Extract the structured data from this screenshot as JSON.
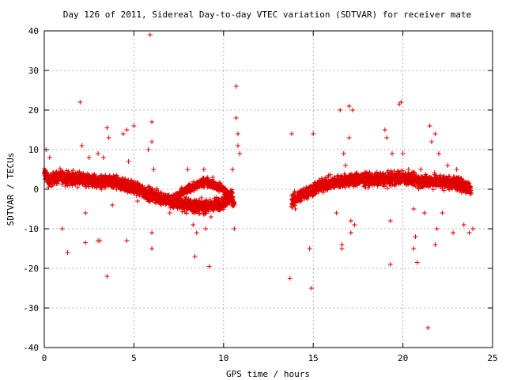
{
  "chart_data": {
    "type": "scatter",
    "title": "Day 126 of 2011, Sidereal Day-to-day VTEC variation (SDTVAR) for receiver mate",
    "xlabel": "GPS time / hours",
    "ylabel": "SDTVAR / TECUs",
    "xlim": [
      0,
      25
    ],
    "ylim": [
      -40,
      40
    ],
    "xticks": [
      0,
      5,
      10,
      15,
      20,
      25
    ],
    "yticks": [
      -40,
      -30,
      -20,
      -10,
      0,
      10,
      20,
      30,
      40
    ],
    "grid": true,
    "marker": "plus",
    "color": "#e00000",
    "dense_bands": [
      {
        "x": [
          0.0,
          0.3,
          0.6,
          1.0,
          2.0,
          3.0,
          4.0,
          5.0,
          6.0,
          7.0,
          8.0,
          9.0,
          10.0,
          10.5
        ],
        "y": [
          4.0,
          2.0,
          3.0,
          3.0,
          2.5,
          2.0,
          1.5,
          0.5,
          -1.5,
          -3.0,
          -4.0,
          -4.5,
          -3.5,
          -1.0
        ],
        "spread": 1.6
      },
      {
        "x": [
          7.0,
          8.0,
          9.0,
          10.0,
          10.6
        ],
        "y": [
          -3.0,
          0.0,
          2.0,
          0.0,
          -4.0
        ],
        "spread": 1.0
      },
      {
        "x": [
          13.8,
          14.5,
          15.5,
          16.5,
          17.5,
          19.0,
          20.0,
          21.0,
          22.0,
          23.0,
          23.8
        ],
        "y": [
          -3.0,
          -1.0,
          1.0,
          2.0,
          2.5,
          2.5,
          3.0,
          2.0,
          2.0,
          1.5,
          0.0
        ],
        "spread": 1.6
      }
    ],
    "outliers": [
      {
        "x": 0.1,
        "y": 10
      },
      {
        "x": 0.3,
        "y": 8
      },
      {
        "x": 1.0,
        "y": -10
      },
      {
        "x": 1.3,
        "y": -16
      },
      {
        "x": 2.0,
        "y": 22
      },
      {
        "x": 2.1,
        "y": 11
      },
      {
        "x": 2.3,
        "y": -6
      },
      {
        "x": 2.3,
        "y": -13.5
      },
      {
        "x": 2.5,
        "y": 8
      },
      {
        "x": 3.0,
        "y": 9
      },
      {
        "x": 3.0,
        "y": -13
      },
      {
        "x": 3.1,
        "y": -13
      },
      {
        "x": 3.3,
        "y": 8
      },
      {
        "x": 3.5,
        "y": 15.5
      },
      {
        "x": 3.5,
        "y": -22
      },
      {
        "x": 3.6,
        "y": 13
      },
      {
        "x": 3.8,
        "y": -4
      },
      {
        "x": 4.0,
        "y": 3
      },
      {
        "x": 4.4,
        "y": 14
      },
      {
        "x": 4.6,
        "y": 15
      },
      {
        "x": 4.6,
        "y": -13
      },
      {
        "x": 4.7,
        "y": 7
      },
      {
        "x": 5.0,
        "y": 16
      },
      {
        "x": 5.2,
        "y": -3
      },
      {
        "x": 5.9,
        "y": 39
      },
      {
        "x": 6.0,
        "y": 17
      },
      {
        "x": 5.8,
        "y": 10
      },
      {
        "x": 6.0,
        "y": 12
      },
      {
        "x": 6.0,
        "y": -11
      },
      {
        "x": 6.0,
        "y": -15
      },
      {
        "x": 6.1,
        "y": 5
      },
      {
        "x": 7.0,
        "y": -6
      },
      {
        "x": 8.0,
        "y": 5
      },
      {
        "x": 8.3,
        "y": -9
      },
      {
        "x": 8.4,
        "y": -17
      },
      {
        "x": 8.5,
        "y": -11
      },
      {
        "x": 8.9,
        "y": 5
      },
      {
        "x": 9.0,
        "y": -10
      },
      {
        "x": 9.2,
        "y": -19.5
      },
      {
        "x": 9.3,
        "y": -7
      },
      {
        "x": 9.4,
        "y": 3
      },
      {
        "x": 10.5,
        "y": 5
      },
      {
        "x": 10.6,
        "y": -10
      },
      {
        "x": 10.7,
        "y": 26
      },
      {
        "x": 10.7,
        "y": 18
      },
      {
        "x": 10.8,
        "y": 14
      },
      {
        "x": 10.8,
        "y": 11
      },
      {
        "x": 10.9,
        "y": 9
      },
      {
        "x": 13.7,
        "y": -22.5
      },
      {
        "x": 13.8,
        "y": 14
      },
      {
        "x": 14.0,
        "y": -5
      },
      {
        "x": 14.8,
        "y": -15
      },
      {
        "x": 14.9,
        "y": -25
      },
      {
        "x": 15.0,
        "y": 14
      },
      {
        "x": 16.3,
        "y": -6
      },
      {
        "x": 16.5,
        "y": 20
      },
      {
        "x": 16.6,
        "y": -14
      },
      {
        "x": 16.6,
        "y": -15
      },
      {
        "x": 16.7,
        "y": 9
      },
      {
        "x": 16.8,
        "y": 6
      },
      {
        "x": 17.0,
        "y": 21
      },
      {
        "x": 17.0,
        "y": 13
      },
      {
        "x": 17.1,
        "y": -8
      },
      {
        "x": 17.1,
        "y": -11
      },
      {
        "x": 17.2,
        "y": 20
      },
      {
        "x": 17.3,
        "y": -9
      },
      {
        "x": 19.0,
        "y": 15
      },
      {
        "x": 19.1,
        "y": 13
      },
      {
        "x": 19.3,
        "y": -8
      },
      {
        "x": 19.3,
        "y": -19
      },
      {
        "x": 19.4,
        "y": 9
      },
      {
        "x": 19.8,
        "y": 21.5
      },
      {
        "x": 19.9,
        "y": 22
      },
      {
        "x": 20.0,
        "y": 9
      },
      {
        "x": 20.3,
        "y": 5
      },
      {
        "x": 20.6,
        "y": -5
      },
      {
        "x": 20.6,
        "y": -15
      },
      {
        "x": 20.8,
        "y": -18.5
      },
      {
        "x": 20.7,
        "y": -12
      },
      {
        "x": 21.0,
        "y": 5
      },
      {
        "x": 21.2,
        "y": -6
      },
      {
        "x": 21.4,
        "y": -35
      },
      {
        "x": 21.5,
        "y": 16
      },
      {
        "x": 21.6,
        "y": 12
      },
      {
        "x": 21.8,
        "y": 14
      },
      {
        "x": 21.8,
        "y": -14
      },
      {
        "x": 21.9,
        "y": -10
      },
      {
        "x": 22.0,
        "y": 9
      },
      {
        "x": 22.2,
        "y": -6
      },
      {
        "x": 22.5,
        "y": 6
      },
      {
        "x": 22.8,
        "y": -11
      },
      {
        "x": 23.0,
        "y": 5
      },
      {
        "x": 23.4,
        "y": -9
      },
      {
        "x": 23.7,
        "y": -11
      },
      {
        "x": 23.9,
        "y": -10
      }
    ]
  }
}
